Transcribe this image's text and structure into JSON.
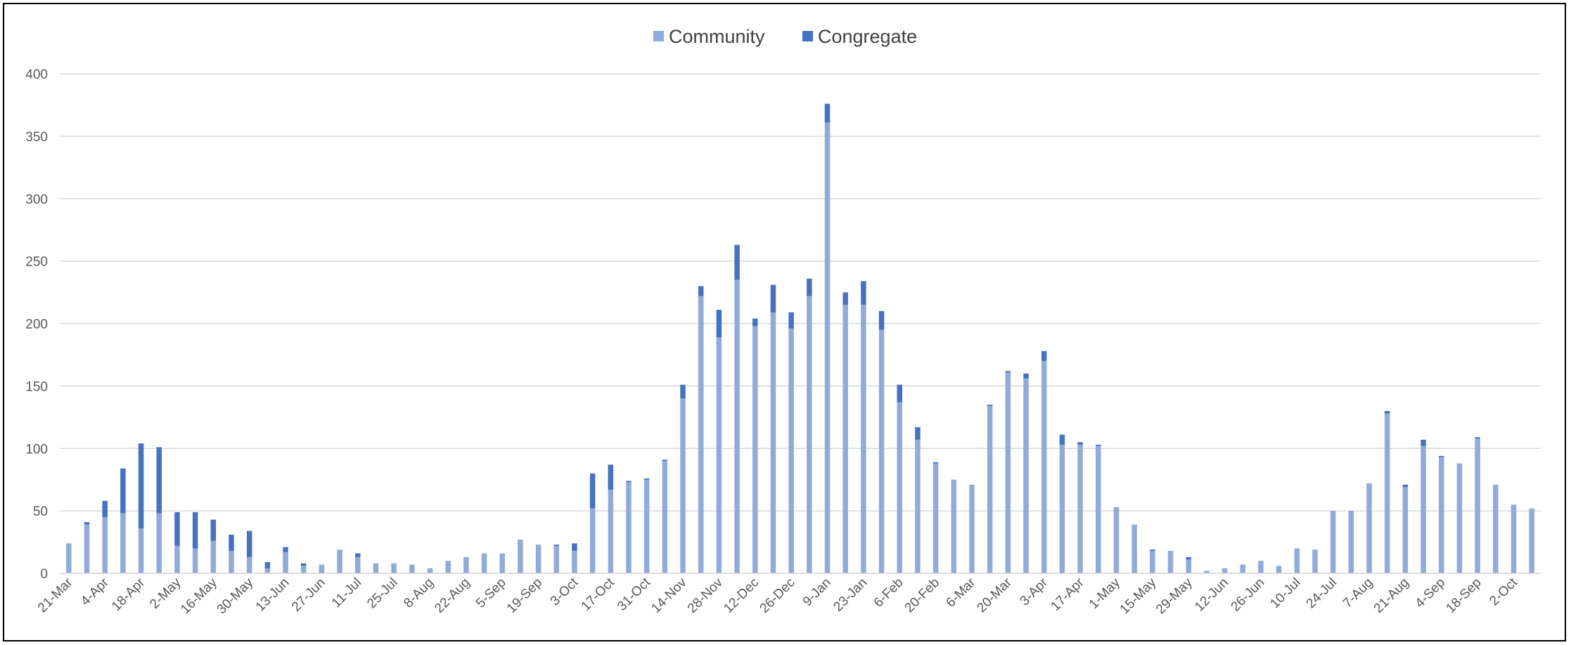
{
  "chart_data": {
    "type": "bar",
    "stacked": true,
    "title": "",
    "xlabel": "",
    "ylabel": "",
    "ylim": [
      0,
      400
    ],
    "yticks": [
      0,
      50,
      100,
      150,
      200,
      250,
      300,
      350,
      400
    ],
    "grid": true,
    "legend": "top-center",
    "categories": [
      "21-Mar",
      "28-Mar",
      "4-Apr",
      "11-Apr",
      "18-Apr",
      "25-Apr",
      "2-May",
      "9-May",
      "16-May",
      "23-May",
      "30-May",
      "6-Jun",
      "13-Jun",
      "20-Jun",
      "27-Jun",
      "4-Jul",
      "11-Jul",
      "18-Jul",
      "25-Jul",
      "1-Aug",
      "8-Aug",
      "15-Aug",
      "22-Aug",
      "29-Aug",
      "5-Sep",
      "12-Sep",
      "19-Sep",
      "26-Sep",
      "3-Oct",
      "10-Oct",
      "17-Oct",
      "24-Oct",
      "31-Oct",
      "7-Nov",
      "14-Nov",
      "21-Nov",
      "28-Nov",
      "5-Dec",
      "12-Dec",
      "19-Dec",
      "26-Dec",
      "2-Jan",
      "9-Jan",
      "16-Jan",
      "23-Jan",
      "30-Jan",
      "6-Feb",
      "13-Feb",
      "20-Feb",
      "27-Feb",
      "6-Mar",
      "13-Mar",
      "20-Mar",
      "27-Mar",
      "3-Apr",
      "10-Apr",
      "17-Apr",
      "24-Apr",
      "1-May",
      "8-May",
      "15-May",
      "22-May",
      "29-May",
      "5-Jun",
      "12-Jun",
      "19-Jun",
      "26-Jun",
      "3-Jul",
      "10-Jul",
      "17-Jul",
      "24-Jul",
      "31-Jul",
      "7-Aug",
      "14-Aug",
      "21-Aug",
      "28-Aug",
      "4-Sep",
      "11-Sep",
      "18-Sep",
      "25-Sep",
      "2-Oct",
      "9-Oct"
    ],
    "xtick_labels": [
      "21-Mar",
      "4-Apr",
      "18-Apr",
      "2-May",
      "16-May",
      "30-May",
      "13-Jun",
      "27-Jun",
      "11-Jul",
      "25-Jul",
      "8-Aug",
      "22-Aug",
      "5-Sep",
      "19-Sep",
      "3-Oct",
      "17-Oct",
      "31-Oct",
      "14-Nov",
      "28-Nov",
      "12-Dec",
      "26-Dec",
      "9-Jan",
      "23-Jan",
      "6-Feb",
      "20-Feb",
      "6-Mar",
      "20-Mar",
      "3-Apr",
      "17-Apr",
      "1-May",
      "15-May",
      "29-May",
      "12-Jun",
      "26-Jun",
      "10-Jul",
      "24-Jul",
      "7-Aug",
      "21-Aug",
      "4-Sep",
      "18-Sep",
      "2-Oct"
    ],
    "series": [
      {
        "name": "Community",
        "color": "#8faadc",
        "values": [
          24,
          39,
          45,
          48,
          36,
          48,
          22,
          20,
          26,
          18,
          13,
          4,
          17,
          6,
          7,
          19,
          13,
          8,
          8,
          7,
          4,
          10,
          13,
          16,
          16,
          27,
          23,
          22,
          18,
          52,
          67,
          73,
          75,
          90,
          140,
          222,
          189,
          235,
          198,
          209,
          196,
          222,
          361,
          215,
          215,
          195,
          137,
          107,
          88,
          75,
          71,
          134,
          161,
          156,
          170,
          103,
          103,
          102,
          53,
          39,
          18,
          18,
          11,
          2,
          4,
          7,
          10,
          6,
          20,
          19,
          50,
          50,
          72,
          128,
          69,
          102,
          93,
          88,
          108,
          71,
          55,
          52
        ]
      },
      {
        "name": "Congregate",
        "color": "#4472c4",
        "values": [
          0,
          2,
          13,
          36,
          68,
          53,
          27,
          29,
          17,
          13,
          21,
          5,
          4,
          2,
          0,
          0,
          3,
          0,
          0,
          0,
          0,
          0,
          0,
          0,
          0,
          0,
          0,
          1,
          6,
          28,
          20,
          1,
          1,
          1,
          11,
          8,
          22,
          28,
          6,
          22,
          13,
          14,
          15,
          10,
          19,
          15,
          14,
          10,
          1,
          0,
          0,
          1,
          1,
          4,
          8,
          8,
          2,
          1,
          0,
          0,
          1,
          0,
          2,
          0,
          0,
          0,
          0,
          0,
          0,
          0,
          0,
          0,
          0,
          2,
          2,
          5,
          1,
          0,
          1,
          0,
          0,
          0
        ]
      }
    ]
  }
}
